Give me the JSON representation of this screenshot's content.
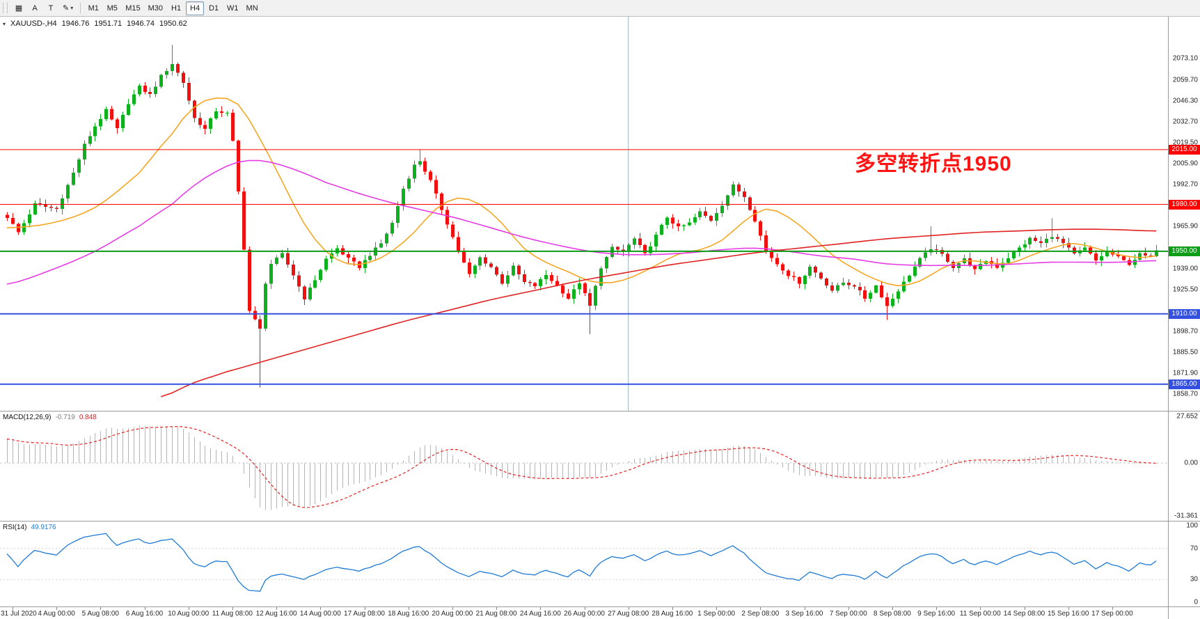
{
  "toolbar": {
    "tool_buttons": [
      {
        "name": "chart-grid-tool",
        "glyph": "▦",
        "caret": false
      },
      {
        "name": "arrow-text-tool",
        "glyph": "A",
        "caret": false
      },
      {
        "name": "text-label-tool",
        "glyph": "T",
        "caret": false
      },
      {
        "name": "draw-objects-tool",
        "glyph": "✎",
        "caret": true
      }
    ],
    "timeframes": [
      "M1",
      "M5",
      "M15",
      "M30",
      "H1",
      "H4",
      "D1",
      "W1",
      "MN"
    ],
    "active_timeframe": "H4"
  },
  "chart_header": {
    "symbol_period": "XAUUSD-,H4",
    "open": "1946.76",
    "high": "1951.71",
    "low": "1946.74",
    "close": "1950.62"
  },
  "annotation": {
    "text": "多空转折点1950",
    "color": "#ff1414"
  },
  "macd_panel": {
    "title": "MACD(12,26,9)",
    "main_value": "-0.719",
    "signal_value": "0.848"
  },
  "rsi_panel": {
    "title": "RSI(14)",
    "value": "49.9176"
  },
  "chart_data": {
    "type": "candlestick",
    "symbol": "XAUUSD-",
    "timeframe": "H4",
    "title": "XAUUSD-,H4",
    "current_ohlc": {
      "open": 1946.76,
      "high": 1951.71,
      "low": 1946.74,
      "close": 1950.62
    },
    "candle_up_color": "#0fb01e",
    "candle_down_color": "#ef1010",
    "y_axis": {
      "min": 1848,
      "max": 2100,
      "visible_ticks": [
        2073.1,
        2059.7,
        2046.3,
        2032.7,
        2019.5,
        2005.9,
        1992.7,
        1965.9,
        1939.0,
        1925.5,
        1898.7,
        1885.5,
        1871.9,
        1858.7
      ]
    },
    "horizontal_lines": [
      {
        "price": 2015.0,
        "label": "2015.00",
        "color": "#ff0000",
        "width": 1
      },
      {
        "price": 1980.0,
        "label": "1980.00",
        "color": "#ff0000",
        "width": 1
      },
      {
        "price": 1950.0,
        "label": "1950.00",
        "color": "#0d9c17",
        "width": 2
      },
      {
        "price": 1910.0,
        "label": "1910.00",
        "color": "#3350e0",
        "width": 2
      },
      {
        "price": 1865.0,
        "label": "1865.00",
        "color": "#3350e0",
        "width": 2
      }
    ],
    "vertical_line_index": 113,
    "candles": {
      "count": 210,
      "last_close": 1950.62,
      "noise": 2.0,
      "close_anchors": [
        [
          0,
          1972
        ],
        [
          2,
          1962
        ],
        [
          5,
          1980
        ],
        [
          9,
          1977
        ],
        [
          12,
          2000
        ],
        [
          14,
          2018
        ],
        [
          16,
          2030
        ],
        [
          18,
          2040
        ],
        [
          20,
          2028
        ],
        [
          22,
          2045
        ],
        [
          24,
          2055
        ],
        [
          26,
          2050
        ],
        [
          28,
          2062
        ],
        [
          30,
          2070
        ],
        [
          32,
          2058
        ],
        [
          34,
          2035
        ],
        [
          36,
          2028
        ],
        [
          38,
          2040
        ],
        [
          40,
          2038
        ],
        [
          41,
          2020
        ],
        [
          42,
          1988
        ],
        [
          43,
          1952
        ],
        [
          44,
          1912
        ],
        [
          46,
          1900
        ],
        [
          47,
          1930
        ],
        [
          48,
          1942
        ],
        [
          50,
          1948
        ],
        [
          52,
          1935
        ],
        [
          54,
          1920
        ],
        [
          56,
          1932
        ],
        [
          58,
          1945
        ],
        [
          60,
          1952
        ],
        [
          62,
          1945
        ],
        [
          64,
          1940
        ],
        [
          66,
          1948
        ],
        [
          68,
          1955
        ],
        [
          70,
          1968
        ],
        [
          72,
          1990
        ],
        [
          74,
          2005
        ],
        [
          75,
          2008
        ],
        [
          77,
          1995
        ],
        [
          80,
          1968
        ],
        [
          82,
          1950
        ],
        [
          84,
          1935
        ],
        [
          86,
          1946
        ],
        [
          88,
          1940
        ],
        [
          90,
          1930
        ],
        [
          92,
          1940
        ],
        [
          94,
          1930
        ],
        [
          96,
          1928
        ],
        [
          98,
          1935
        ],
        [
          100,
          1928
        ],
        [
          102,
          1920
        ],
        [
          104,
          1930
        ],
        [
          106,
          1915
        ],
        [
          108,
          1940
        ],
        [
          110,
          1952
        ],
        [
          112,
          1950
        ],
        [
          114,
          1958
        ],
        [
          116,
          1948
        ],
        [
          118,
          1960
        ],
        [
          120,
          1972
        ],
        [
          122,
          1965
        ],
        [
          124,
          1968
        ],
        [
          126,
          1975
        ],
        [
          128,
          1970
        ],
        [
          130,
          1980
        ],
        [
          132,
          1992
        ],
        [
          134,
          1985
        ],
        [
          136,
          1970
        ],
        [
          138,
          1950
        ],
        [
          140,
          1942
        ],
        [
          142,
          1935
        ],
        [
          144,
          1930
        ],
        [
          146,
          1940
        ],
        [
          148,
          1933
        ],
        [
          150,
          1925
        ],
        [
          152,
          1930
        ],
        [
          154,
          1928
        ],
        [
          156,
          1920
        ],
        [
          158,
          1928
        ],
        [
          160,
          1915
        ],
        [
          162,
          1925
        ],
        [
          164,
          1935
        ],
        [
          166,
          1945
        ],
        [
          168,
          1952
        ],
        [
          170,
          1948
        ],
        [
          172,
          1940
        ],
        [
          174,
          1945
        ],
        [
          176,
          1938
        ],
        [
          178,
          1944
        ],
        [
          180,
          1940
        ],
        [
          182,
          1946
        ],
        [
          184,
          1952
        ],
        [
          186,
          1958
        ],
        [
          188,
          1955
        ],
        [
          190,
          1960
        ],
        [
          192,
          1955
        ],
        [
          194,
          1948
        ],
        [
          196,
          1952
        ],
        [
          198,
          1944
        ],
        [
          200,
          1950
        ],
        [
          202,
          1946
        ],
        [
          204,
          1942
        ],
        [
          206,
          1948
        ],
        [
          208,
          1946
        ],
        [
          209,
          1950.62
        ]
      ],
      "high_wicks": [
        [
          30,
          2082
        ],
        [
          75,
          2015
        ],
        [
          168,
          1966
        ],
        [
          190,
          1971
        ]
      ],
      "low_wicks": [
        [
          46,
          1863
        ],
        [
          106,
          1897
        ],
        [
          160,
          1906
        ]
      ]
    },
    "moving_averages": [
      {
        "name": "ma-fast",
        "color": "#f5a623",
        "width": 1.6,
        "points": [
          [
            0,
            1965
          ],
          [
            8,
            1968
          ],
          [
            16,
            1978
          ],
          [
            24,
            2000
          ],
          [
            30,
            2025
          ],
          [
            34,
            2042
          ],
          [
            38,
            2048
          ],
          [
            42,
            2044
          ],
          [
            46,
            2022
          ],
          [
            50,
            1995
          ],
          [
            54,
            1968
          ],
          [
            58,
            1950
          ],
          [
            62,
            1942
          ],
          [
            66,
            1943
          ],
          [
            70,
            1950
          ],
          [
            74,
            1962
          ],
          [
            78,
            1977
          ],
          [
            82,
            1984
          ],
          [
            86,
            1980
          ],
          [
            90,
            1968
          ],
          [
            94,
            1952
          ],
          [
            98,
            1943
          ],
          [
            102,
            1937
          ],
          [
            106,
            1931
          ],
          [
            110,
            1930
          ],
          [
            114,
            1934
          ],
          [
            118,
            1941
          ],
          [
            122,
            1948
          ],
          [
            126,
            1951
          ],
          [
            130,
            1957
          ],
          [
            134,
            1969
          ],
          [
            138,
            1977
          ],
          [
            142,
            1972
          ],
          [
            146,
            1961
          ],
          [
            150,
            1948
          ],
          [
            154,
            1939
          ],
          [
            158,
            1932
          ],
          [
            162,
            1928
          ],
          [
            166,
            1931
          ],
          [
            170,
            1939
          ],
          [
            174,
            1944
          ],
          [
            178,
            1943
          ],
          [
            182,
            1942
          ],
          [
            186,
            1947
          ],
          [
            190,
            1952
          ],
          [
            194,
            1955
          ],
          [
            198,
            1952
          ],
          [
            202,
            1948
          ],
          [
            206,
            1946
          ],
          [
            209,
            1947
          ]
        ]
      },
      {
        "name": "ma-mid",
        "color": "#e53ce5",
        "width": 1.6,
        "points": [
          [
            0,
            1929
          ],
          [
            8,
            1938
          ],
          [
            16,
            1950
          ],
          [
            24,
            1966
          ],
          [
            30,
            1980
          ],
          [
            34,
            1992
          ],
          [
            38,
            2001
          ],
          [
            42,
            2007
          ],
          [
            46,
            2008
          ],
          [
            50,
            2005
          ],
          [
            54,
            2000
          ],
          [
            58,
            1994
          ],
          [
            64,
            1987
          ],
          [
            70,
            1981
          ],
          [
            76,
            1976
          ],
          [
            82,
            1971
          ],
          [
            88,
            1965
          ],
          [
            94,
            1959
          ],
          [
            100,
            1954
          ],
          [
            106,
            1950
          ],
          [
            112,
            1948
          ],
          [
            118,
            1948
          ],
          [
            124,
            1949
          ],
          [
            130,
            1951
          ],
          [
            136,
            1952
          ],
          [
            142,
            1950
          ],
          [
            148,
            1947
          ],
          [
            154,
            1945
          ],
          [
            160,
            1942
          ],
          [
            166,
            1941
          ],
          [
            172,
            1941
          ],
          [
            178,
            1941
          ],
          [
            184,
            1942
          ],
          [
            190,
            1943
          ],
          [
            196,
            1943
          ],
          [
            202,
            1943
          ],
          [
            209,
            1944
          ]
        ]
      },
      {
        "name": "ma-slow",
        "color": "#e02222",
        "width": 1.6,
        "points": [
          [
            28,
            1857
          ],
          [
            34,
            1866
          ],
          [
            40,
            1873
          ],
          [
            48,
            1881
          ],
          [
            56,
            1889
          ],
          [
            64,
            1897
          ],
          [
            72,
            1905
          ],
          [
            80,
            1912
          ],
          [
            88,
            1919
          ],
          [
            96,
            1925
          ],
          [
            104,
            1931
          ],
          [
            112,
            1936
          ],
          [
            120,
            1941
          ],
          [
            128,
            1945
          ],
          [
            136,
            1949
          ],
          [
            144,
            1952
          ],
          [
            152,
            1955
          ],
          [
            160,
            1958
          ],
          [
            168,
            1960
          ],
          [
            176,
            1962
          ],
          [
            184,
            1963
          ],
          [
            192,
            1964
          ],
          [
            200,
            1964
          ],
          [
            209,
            1963
          ]
        ]
      }
    ],
    "macd": {
      "params": [
        12,
        26,
        9
      ],
      "current_main": -0.719,
      "current_signal": 0.848,
      "hist_color": "#b4b4b4",
      "signal_color": "#e32222",
      "scale_ticks": [
        {
          "v": 27.652,
          "label": "27.652"
        },
        {
          "v": 0,
          "label": "0.00"
        },
        {
          "v": -31.361,
          "label": "-31.361"
        }
      ],
      "scale_max": 27.652,
      "scale_min": -31.361
    },
    "rsi": {
      "period": 14,
      "current": 49.9176,
      "color": "#1e7ad4",
      "levels": [
        70,
        30
      ],
      "scale_ticks": [
        {
          "v": 100,
          "label": "100"
        },
        {
          "v": 70,
          "label": "70"
        },
        {
          "v": 30,
          "label": "30"
        },
        {
          "v": 0,
          "label": "0"
        }
      ]
    },
    "x_axis": {
      "tick_start_index": 1,
      "tick_step": 8,
      "labels": [
        "31 Jul 2020",
        "4 Aug 00:00",
        "5 Aug 08:00",
        "6 Aug 16:00",
        "10 Aug 00:00",
        "11 Aug 08:00",
        "12 Aug 16:00",
        "14 Aug 00:00",
        "17 Aug 08:00",
        "18 Aug 16:00",
        "20 Aug 00:00",
        "21 Aug 08:00",
        "24 Aug 16:00",
        "26 Aug 00:00",
        "27 Aug 08:00",
        "28 Aug 16:00",
        "1 Sep 00:00",
        "2 Sep 08:00",
        "3 Sep 16:00",
        "7 Sep 00:00",
        "8 Sep 08:00",
        "9 Sep 16:00",
        "11 Sep 00:00",
        "14 Sep 08:00",
        "15 Sep 16:00",
        "17 Sep 00:00"
      ]
    }
  }
}
